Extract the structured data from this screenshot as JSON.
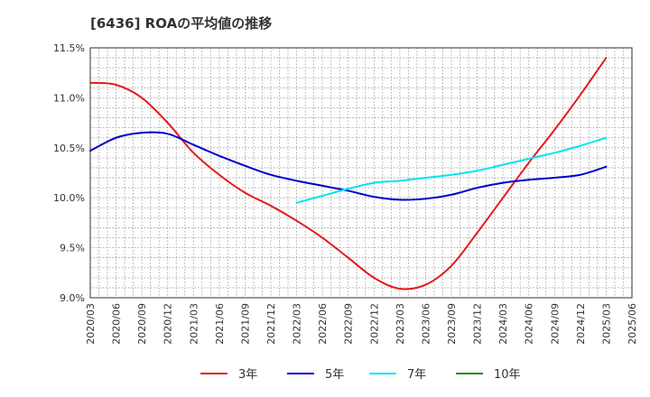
{
  "chart_data": {
    "type": "line",
    "title": "[6436]  ROAの平均値の推移",
    "xlabel": "",
    "ylabel": "",
    "ylim": [
      9.0,
      11.5
    ],
    "y_ticks": [
      "9.0%",
      "9.5%",
      "10.0%",
      "10.5%",
      "11.0%",
      "11.5%"
    ],
    "y_tick_values": [
      9.0,
      9.5,
      10.0,
      10.5,
      11.0,
      11.5
    ],
    "x_ticks": [
      "2020/03",
      "2020/06",
      "2020/09",
      "2020/12",
      "2021/03",
      "2021/06",
      "2021/09",
      "2021/12",
      "2022/03",
      "2022/06",
      "2022/09",
      "2022/12",
      "2023/03",
      "2023/06",
      "2023/09",
      "2023/12",
      "2024/03",
      "2024/06",
      "2024/09",
      "2024/12",
      "2025/03",
      "2025/06"
    ],
    "grid": true,
    "legend_position": "bottom",
    "series": [
      {
        "name": "3年",
        "color": "#e41a1c",
        "x": [
          "2020/03",
          "2020/06",
          "2020/09",
          "2020/12",
          "2021/03",
          "2021/06",
          "2021/09",
          "2021/12",
          "2022/03",
          "2022/06",
          "2022/09",
          "2022/12",
          "2023/03",
          "2023/06",
          "2023/09",
          "2023/12",
          "2024/03",
          "2024/06",
          "2024/09",
          "2024/12",
          "2025/03"
        ],
        "values": [
          11.15,
          11.13,
          11.0,
          10.75,
          10.45,
          10.23,
          10.05,
          9.92,
          9.77,
          9.6,
          9.4,
          9.2,
          9.09,
          9.13,
          9.32,
          9.65,
          10.0,
          10.35,
          10.68,
          11.03,
          11.4
        ]
      },
      {
        "name": "5年",
        "color": "#0000cc",
        "x": [
          "2020/03",
          "2020/06",
          "2020/09",
          "2020/12",
          "2021/03",
          "2021/06",
          "2021/09",
          "2021/12",
          "2022/03",
          "2022/06",
          "2022/09",
          "2022/12",
          "2023/03",
          "2023/06",
          "2023/09",
          "2023/12",
          "2024/03",
          "2024/06",
          "2024/09",
          "2024/12",
          "2025/03"
        ],
        "values": [
          10.47,
          10.6,
          10.65,
          10.64,
          10.53,
          10.42,
          10.32,
          10.23,
          10.17,
          10.12,
          10.07,
          10.01,
          9.98,
          9.99,
          10.03,
          10.1,
          10.15,
          10.18,
          10.2,
          10.23,
          10.31
        ]
      },
      {
        "name": "7年",
        "color": "#00e5ee",
        "x": [
          "2022/03",
          "2022/06",
          "2022/09",
          "2022/12",
          "2023/03",
          "2023/06",
          "2023/09",
          "2023/12",
          "2024/03",
          "2024/06",
          "2024/09",
          "2024/12",
          "2025/03"
        ],
        "values": [
          9.95,
          10.02,
          10.09,
          10.15,
          10.17,
          10.2,
          10.23,
          10.27,
          10.33,
          10.39,
          10.45,
          10.52,
          10.6
        ]
      },
      {
        "name": "10年",
        "color": "#228b22",
        "x": [],
        "values": []
      }
    ]
  }
}
